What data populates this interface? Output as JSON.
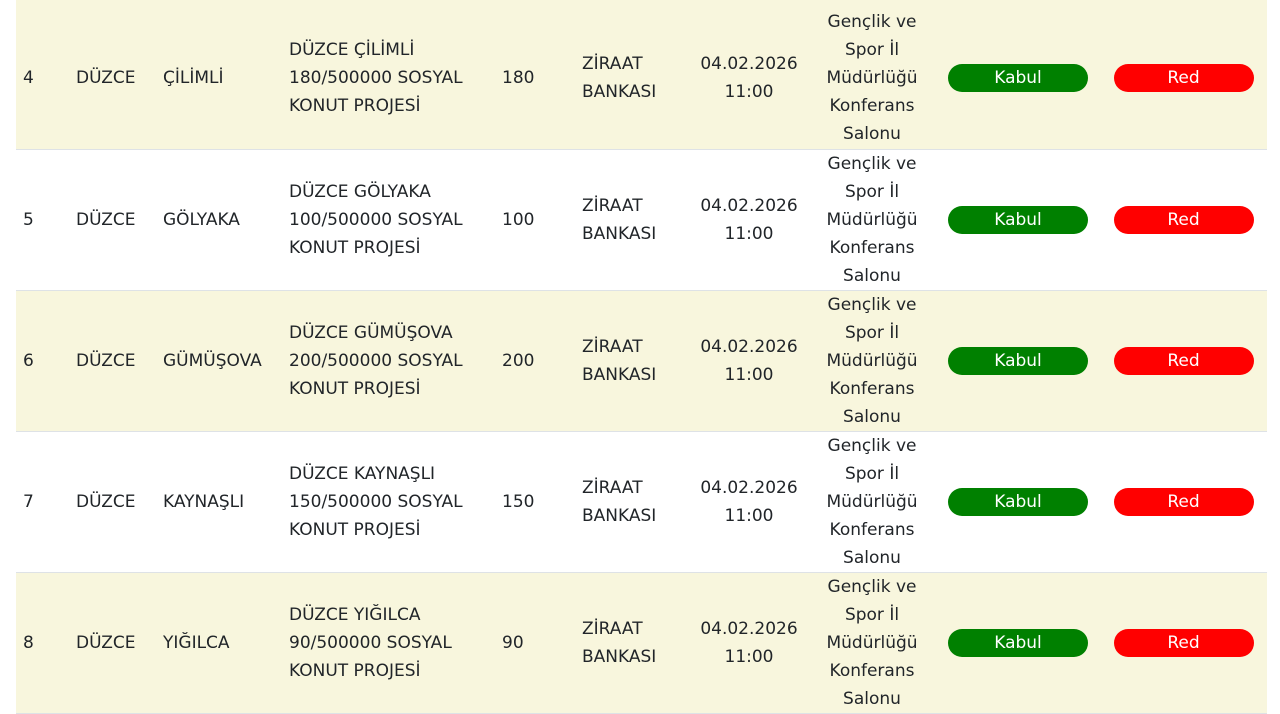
{
  "colors": {
    "accept": "#008000",
    "reject": "#ff0000",
    "row_alt": "#f8f6dd"
  },
  "rows": [
    {
      "no": "4",
      "province": "DÜZCE",
      "district": "ÇİLİMLİ",
      "project": [
        "DÜZCE ÇİLİMLİ",
        "180/500000 SOSYAL",
        "KONUT PROJESİ"
      ],
      "count": "180",
      "bank": [
        "ZİRAAT",
        "BANKASI"
      ],
      "date": "04.02.2026",
      "time": "11:00",
      "location": [
        "Gençlik ve",
        "Spor İl",
        "Müdürlüğü",
        "Konferans",
        "Salonu"
      ],
      "accept": "Kabul",
      "reject": "Red"
    },
    {
      "no": "5",
      "province": "DÜZCE",
      "district": "GÖLYAKA",
      "project": [
        "DÜZCE GÖLYAKA",
        "100/500000 SOSYAL",
        "KONUT PROJESİ"
      ],
      "count": "100",
      "bank": [
        "ZİRAAT",
        "BANKASI"
      ],
      "date": "04.02.2026",
      "time": "11:00",
      "location": [
        "Gençlik ve",
        "Spor İl",
        "Müdürlüğü",
        "Konferans",
        "Salonu"
      ],
      "accept": "Kabul",
      "reject": "Red"
    },
    {
      "no": "6",
      "province": "DÜZCE",
      "district": "GÜMÜŞOVA",
      "project": [
        "DÜZCE GÜMÜŞOVA",
        "200/500000 SOSYAL",
        "KONUT PROJESİ"
      ],
      "count": "200",
      "bank": [
        "ZİRAAT",
        "BANKASI"
      ],
      "date": "04.02.2026",
      "time": "11:00",
      "location": [
        "Gençlik ve",
        "Spor İl",
        "Müdürlüğü",
        "Konferans",
        "Salonu"
      ],
      "accept": "Kabul",
      "reject": "Red"
    },
    {
      "no": "7",
      "province": "DÜZCE",
      "district": "KAYNAŞLI",
      "project": [
        "DÜZCE KAYNAŞLI",
        "150/500000 SOSYAL",
        "KONUT PROJESİ"
      ],
      "count": "150",
      "bank": [
        "ZİRAAT",
        "BANKASI"
      ],
      "date": "04.02.2026",
      "time": "11:00",
      "location": [
        "Gençlik ve",
        "Spor İl",
        "Müdürlüğü",
        "Konferans",
        "Salonu"
      ],
      "accept": "Kabul",
      "reject": "Red"
    },
    {
      "no": "8",
      "province": "DÜZCE",
      "district": "YIĞILCA",
      "project": [
        "DÜZCE YIĞILCA",
        "90/500000 SOSYAL",
        "KONUT PROJESİ"
      ],
      "count": "90",
      "bank": [
        "ZİRAAT",
        "BANKASI"
      ],
      "date": "04.02.2026",
      "time": "11:00",
      "location": [
        "Gençlik ve",
        "Spor İl",
        "Müdürlüğü",
        "Konferans",
        "Salonu"
      ],
      "accept": "Kabul",
      "reject": "Red"
    }
  ]
}
